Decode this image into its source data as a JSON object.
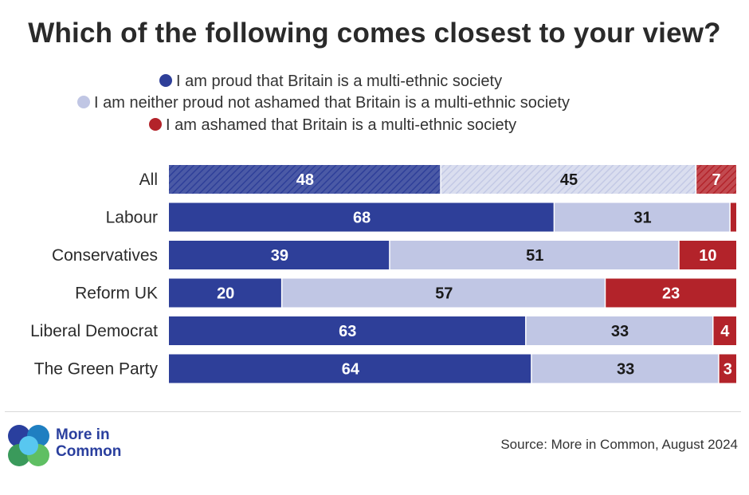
{
  "colors": {
    "proud": "#2e3f99",
    "neither": "#c0c6e4",
    "ashamed": "#b3232a"
  },
  "chart_data": {
    "type": "bar",
    "orientation": "horizontal",
    "stacked": true,
    "title": "Which of the following comes closest to your view?",
    "legend_placement": "top",
    "categories": [
      "All",
      "Labour",
      "Conservatives",
      "Reform UK",
      "Liberal Democrat",
      "The Green Party"
    ],
    "series": [
      {
        "name": "I am proud that Britain is a multi-ethnic society",
        "key": "proud",
        "values": [
          48,
          68,
          39,
          20,
          63,
          64
        ],
        "labels": [
          "48",
          "68",
          "39",
          "20",
          "63",
          "64"
        ]
      },
      {
        "name": "I am neither proud not ashamed that Britain is a multi-ethnic society",
        "key": "neither",
        "values": [
          45,
          31,
          51,
          57,
          33,
          33
        ],
        "labels": [
          "45",
          "31",
          "51",
          "57",
          "33",
          "33"
        ]
      },
      {
        "name": "I am ashamed that Britain is a multi-ethnic society",
        "key": "ashamed",
        "values": [
          7,
          1,
          10,
          23,
          4,
          3
        ],
        "labels": [
          "7",
          "",
          "10",
          "23",
          "4",
          "3"
        ]
      }
    ],
    "hatched_rows": [
      "All"
    ],
    "xlim": [
      0,
      100
    ],
    "grid": false
  },
  "footer": {
    "brand_line1": "More in",
    "brand_line2": "Common",
    "source": "Source: More in Common, August 2024"
  }
}
